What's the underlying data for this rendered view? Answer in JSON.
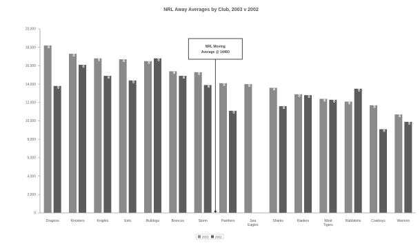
{
  "chart_data": {
    "type": "bar",
    "title": "NRL Away Averages by Club, 2003 v 2002",
    "categories": [
      "Dragons",
      "Roosters",
      "Knights",
      "Eels",
      "Bulldogs",
      "Broncos",
      "Storm",
      "Panthers",
      "Sea Eagles",
      "Sharks",
      "Raiders",
      "West Tigers",
      "Rabbitohs",
      "Cowboys",
      "Warriors"
    ],
    "series": [
      {
        "name": "2003",
        "color": "#8a8a8a",
        "values": [
          18200,
          17300,
          16800,
          16700,
          16500,
          15400,
          15300,
          14100,
          14000,
          13600,
          12900,
          12400,
          12100,
          11700,
          10700
        ]
      },
      {
        "name": "2002",
        "color": "#5c5c5c",
        "values": [
          13800,
          16100,
          14900,
          14400,
          16800,
          14900,
          13900,
          11100,
          null,
          11600,
          12800,
          12300,
          13500,
          9100,
          9900
        ]
      }
    ],
    "y_ticks": [
      "0",
      "2,000",
      "4,000",
      "6,000",
      "8,000",
      "10,000",
      "12,000",
      "14,000",
      "16,000",
      "18,000",
      "20,000"
    ],
    "ylim": [
      0,
      20000
    ],
    "grid": false,
    "legend_position": "bottom",
    "annotation": {
      "line1": "NRL Moving",
      "line2": "Average @ 14460",
      "value": 14460
    }
  }
}
